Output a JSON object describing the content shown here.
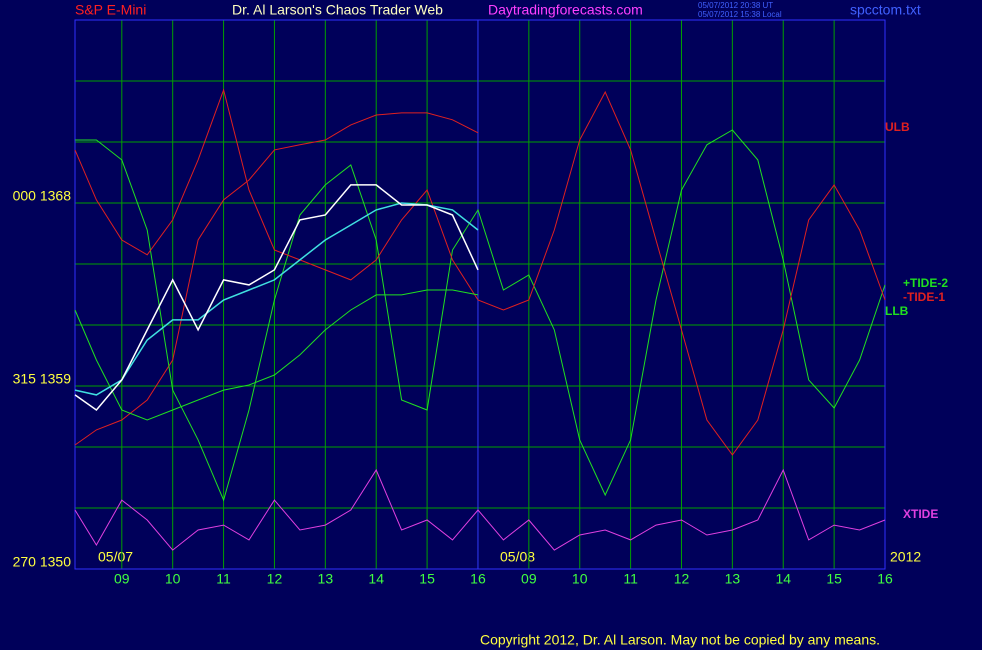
{
  "chart_data": {
    "type": "line",
    "title": "S&P E-Mini",
    "subtitle": "Dr. Al Larson's Chaos Trader Web",
    "site": "Daytradingforecasts.com",
    "timestamps": [
      "05/07/2012 20:38 UT",
      "05/07/2012 15:38 Local"
    ],
    "file": "spcctom.txt",
    "copyright": "Copyright 2012, Dr. Al Larson. May not be copied by any means.",
    "annotations": [
      "05/07",
      "05/08",
      "2012"
    ],
    "x": [
      0.08,
      0.5,
      1,
      1.5,
      2,
      2.5,
      3,
      3.5,
      4,
      4.5,
      5,
      5.5,
      6,
      6.5,
      7,
      7.5,
      8,
      8.5,
      9,
      9.5,
      10,
      10.5,
      11,
      11.5,
      12,
      12.5,
      13,
      13.5,
      14,
      14.5,
      15,
      15.5,
      16
    ],
    "xlim": [
      0.08,
      16
    ],
    "xticks": [
      {
        "value": 1,
        "label": "09"
      },
      {
        "value": 2,
        "label": "10"
      },
      {
        "value": 3,
        "label": "11"
      },
      {
        "value": 4,
        "label": "12"
      },
      {
        "value": 5,
        "label": "13"
      },
      {
        "value": 6,
        "label": "14"
      },
      {
        "value": 7,
        "label": "15"
      },
      {
        "value": 8,
        "label": "16"
      },
      {
        "value": 9,
        "label": "09"
      },
      {
        "value": 10,
        "label": "10"
      },
      {
        "value": 11,
        "label": "11"
      },
      {
        "value": 12,
        "label": "12"
      },
      {
        "value": 13,
        "label": "13"
      },
      {
        "value": 14,
        "label": "14"
      },
      {
        "value": 15,
        "label": "15"
      },
      {
        "value": 16,
        "label": "16"
      }
    ],
    "separator_x": 8,
    "ylim": [
      1350,
      1377
    ],
    "yticks": [
      {
        "value": 1350,
        "label": "270  1350"
      },
      {
        "value": 1359,
        "label": "315  1359"
      },
      {
        "value": 1368,
        "label": "000  1368"
      }
    ],
    "minor_yticks": [
      1353,
      1356,
      1362,
      1365,
      1371,
      1374,
      1377
    ],
    "grid": true,
    "series": [
      {
        "name": "ULB",
        "color": "#e02020",
        "values": [
          1356.1,
          1356.84,
          1357.33,
          1358.31,
          1360.28,
          1366.18,
          1368.15,
          1369.13,
          1370.61,
          1370.86,
          1371.1,
          1371.84,
          1372.33,
          1372.43,
          1372.43,
          1372.09,
          1371.45,
          null,
          null,
          null,
          null,
          null,
          null,
          null,
          null,
          null,
          null,
          null,
          null,
          null,
          null,
          null,
          null
        ]
      },
      {
        "name": "+TIDE-2",
        "color": "#20e020",
        "values": [
          1371.1,
          1371.1,
          1370.12,
          1366.67,
          1358.8,
          1356.35,
          1353.39,
          1357.82,
          1363.23,
          1367.41,
          1368.89,
          1369.87,
          1366.18,
          1358.31,
          1357.82,
          1365.69,
          1367.66,
          1363.72,
          1364.46,
          1361.76,
          1356.35,
          1353.64,
          1356.35,
          1363.23,
          1368.64,
          1370.86,
          1371.59,
          1370.12,
          1365.2,
          1359.3,
          1357.92,
          1360.28,
          1363.97
        ]
      },
      {
        "name": "-TIDE-1",
        "color": "#e02020",
        "values": [
          1370.61,
          1368.15,
          1366.18,
          1365.45,
          1367.17,
          1370.12,
          1373.56,
          1368.64,
          1365.69,
          1365.2,
          1364.71,
          1364.22,
          1365.2,
          1367.17,
          1368.64,
          1365.2,
          1363.23,
          1362.74,
          1363.23,
          1366.67,
          1371.1,
          1373.46,
          1370.61,
          1366.18,
          1361.76,
          1357.33,
          1355.61,
          1357.33,
          1361.76,
          1367.17,
          1368.89,
          1366.67,
          1363.23
        ]
      },
      {
        "name": "LLB",
        "color": "#20e020",
        "values": [
          1362.74,
          1360.28,
          1357.82,
          1357.33,
          1357.82,
          1358.31,
          1358.8,
          1359.05,
          1359.54,
          1360.53,
          1361.76,
          1362.74,
          1363.48,
          1363.48,
          1363.72,
          1363.72,
          1363.48,
          null,
          null,
          null,
          null,
          null,
          null,
          null,
          null,
          null,
          null,
          null,
          null,
          null,
          null,
          null,
          null
        ]
      },
      {
        "name": "XTIDE",
        "color": "#e040e0",
        "values": [
          1352.9,
          1351.18,
          1353.39,
          1352.41,
          1350.93,
          1351.92,
          1352.16,
          1351.43,
          1353.39,
          1351.92,
          1352.16,
          1352.9,
          1354.87,
          1351.92,
          1352.41,
          1351.43,
          1352.9,
          1351.43,
          1352.41,
          1350.93,
          1351.67,
          1351.92,
          1351.43,
          1352.16,
          1352.41,
          1351.67,
          1351.92,
          1352.41,
          1354.87,
          1351.43,
          1352.16,
          1351.92,
          1352.41
        ]
      },
      {
        "color": "#40e0e0",
        "values": [
          1358.8,
          1358.56,
          1359.3,
          1361.26,
          1362.25,
          1362.25,
          1363.23,
          1363.72,
          1364.22,
          1365.2,
          1366.18,
          1366.92,
          1367.66,
          1368,
          1367.9,
          1367.66,
          1366.67,
          null,
          null,
          null,
          null,
          null,
          null,
          null,
          null,
          null,
          null,
          null,
          null,
          null,
          null,
          null,
          null
        ]
      },
      {
        "color": "#ffffff",
        "values": [
          1358.56,
          1357.82,
          1359.3,
          1361.76,
          1364.22,
          1361.76,
          1364.22,
          1363.97,
          1364.71,
          1367.17,
          1367.41,
          1368.89,
          1368.89,
          1367.9,
          1367.9,
          1367.41,
          1364.71,
          null,
          null,
          null,
          null,
          null,
          null,
          null,
          null,
          null,
          null,
          null,
          null,
          null,
          null,
          null,
          null
        ]
      }
    ]
  }
}
